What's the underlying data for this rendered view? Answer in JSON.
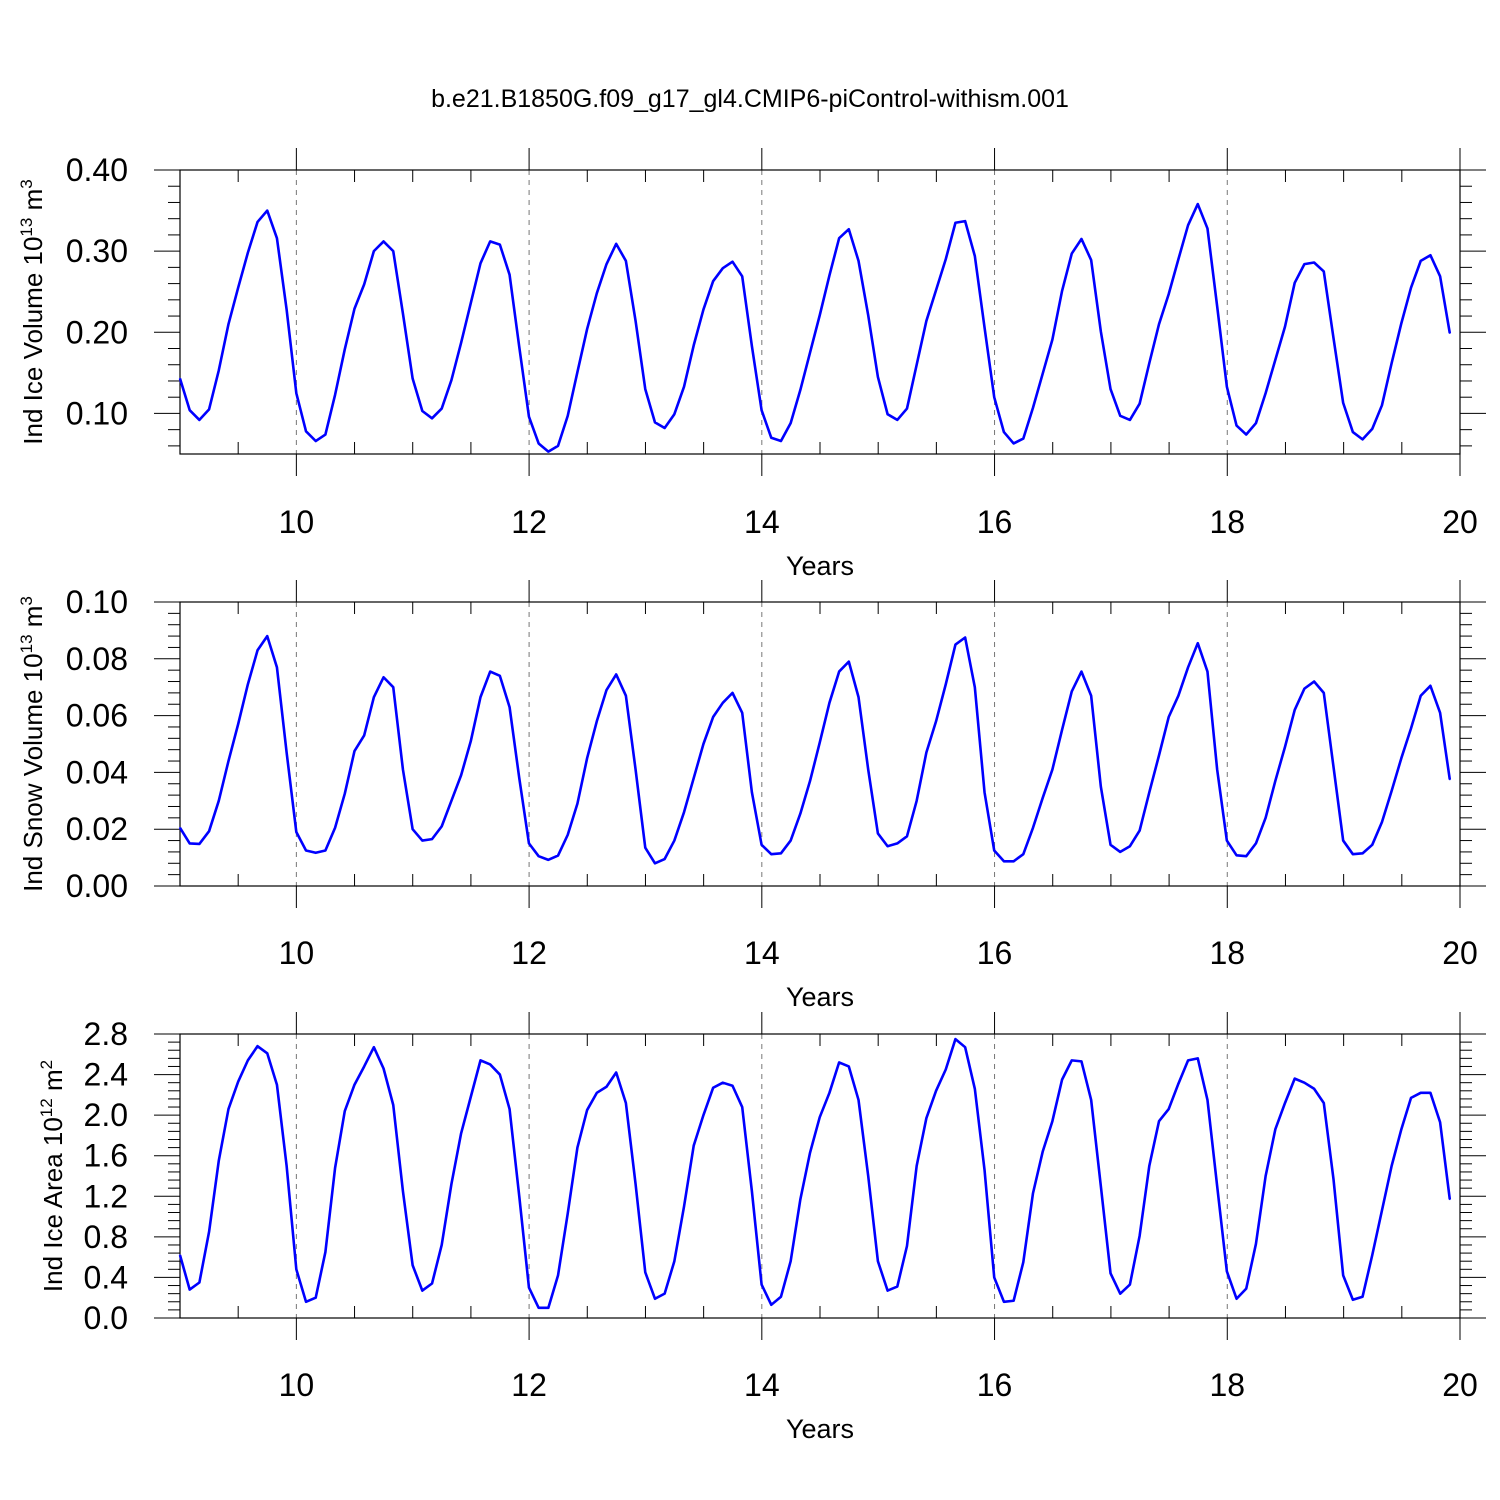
{
  "title": "b.e21.B1850G.f09_g17_gl4.CMIP6-piControl-withism.001",
  "line_color": "#0000ff",
  "chart_data": [
    {
      "type": "line",
      "ylabel": "Ind Ice Volume 10",
      "ylabel_exp": "13",
      "ylabel_unit": " m",
      "ylabel_unit_exp": "3",
      "xlabel": "Years",
      "xlim": [
        9.0,
        20.0
      ],
      "ylim": [
        0.05,
        0.4
      ],
      "xticks": [
        10,
        12,
        14,
        16,
        18,
        20
      ],
      "xtick_labels": [
        "10",
        "12",
        "14",
        "16",
        "18",
        "20"
      ],
      "yticks": [
        0.1,
        0.2,
        0.3,
        0.4
      ],
      "ytick_labels": [
        "0.10",
        "0.20",
        "0.30",
        "0.40"
      ],
      "series": [
        {
          "x_start": 9.0,
          "x_step": 0.0833,
          "values": [
            0.143,
            0.104,
            0.092,
            0.105,
            0.153,
            0.21,
            0.255,
            0.298,
            0.336,
            0.35,
            0.316,
            0.228,
            0.125,
            0.078,
            0.066,
            0.074,
            0.123,
            0.179,
            0.229,
            0.259,
            0.3,
            0.312,
            0.3,
            0.223,
            0.143,
            0.103,
            0.094,
            0.106,
            0.141,
            0.187,
            0.236,
            0.285,
            0.312,
            0.308,
            0.271,
            0.182,
            0.096,
            0.063,
            0.053,
            0.06,
            0.097,
            0.151,
            0.204,
            0.248,
            0.284,
            0.309,
            0.288,
            0.214,
            0.13,
            0.089,
            0.082,
            0.099,
            0.133,
            0.184,
            0.228,
            0.263,
            0.279,
            0.287,
            0.269,
            0.183,
            0.104,
            0.07,
            0.066,
            0.088,
            0.129,
            0.175,
            0.221,
            0.27,
            0.316,
            0.327,
            0.288,
            0.221,
            0.145,
            0.099,
            0.092,
            0.106,
            0.16,
            0.214,
            0.252,
            0.29,
            0.335,
            0.337,
            0.294,
            0.206,
            0.12,
            0.077,
            0.063,
            0.069,
            0.107,
            0.149,
            0.191,
            0.251,
            0.297,
            0.315,
            0.289,
            0.201,
            0.13,
            0.097,
            0.092,
            0.112,
            0.162,
            0.21,
            0.247,
            0.29,
            0.332,
            0.358,
            0.328,
            0.232,
            0.133,
            0.085,
            0.074,
            0.088,
            0.125,
            0.166,
            0.207,
            0.261,
            0.284,
            0.286,
            0.275,
            0.193,
            0.113,
            0.077,
            0.068,
            0.081,
            0.11,
            0.162,
            0.211,
            0.255,
            0.288,
            0.295,
            0.269,
            0.199
          ]
        }
      ]
    },
    {
      "type": "line",
      "ylabel": "Ind Snow Volume 10",
      "ylabel_exp": "13",
      "ylabel_unit": " m",
      "ylabel_unit_exp": "3",
      "xlabel": "Years",
      "xlim": [
        9.0,
        20.0
      ],
      "ylim": [
        0.0,
        0.1
      ],
      "xticks": [
        10,
        12,
        14,
        16,
        18,
        20
      ],
      "xtick_labels": [
        "10",
        "12",
        "14",
        "16",
        "18",
        "20"
      ],
      "yticks": [
        0.0,
        0.02,
        0.04,
        0.06,
        0.08,
        0.1
      ],
      "ytick_labels": [
        "0.00",
        "0.02",
        "0.04",
        "0.06",
        "0.08",
        "0.10"
      ],
      "series": [
        {
          "x_start": 9.0,
          "x_step": 0.0833,
          "values": [
            0.0205,
            0.015,
            0.0148,
            0.0193,
            0.03,
            0.044,
            0.057,
            0.071,
            0.083,
            0.088,
            0.077,
            0.047,
            0.019,
            0.0125,
            0.0117,
            0.0125,
            0.0205,
            0.0325,
            0.0475,
            0.053,
            0.0665,
            0.0735,
            0.07,
            0.041,
            0.02,
            0.016,
            0.0165,
            0.021,
            0.03,
            0.039,
            0.051,
            0.0665,
            0.0755,
            0.074,
            0.063,
            0.038,
            0.015,
            0.0105,
            0.0092,
            0.0107,
            0.018,
            0.029,
            0.045,
            0.058,
            0.069,
            0.0745,
            0.067,
            0.041,
            0.0135,
            0.008,
            0.0095,
            0.016,
            0.026,
            0.038,
            0.05,
            0.0595,
            0.0645,
            0.068,
            0.061,
            0.033,
            0.0145,
            0.0112,
            0.0115,
            0.016,
            0.0255,
            0.037,
            0.0505,
            0.0645,
            0.0755,
            0.079,
            0.0665,
            0.041,
            0.0185,
            0.014,
            0.015,
            0.0175,
            0.03,
            0.047,
            0.058,
            0.071,
            0.085,
            0.0875,
            0.07,
            0.033,
            0.0125,
            0.0087,
            0.0087,
            0.0112,
            0.0205,
            0.031,
            0.041,
            0.055,
            0.0685,
            0.0755,
            0.067,
            0.035,
            0.0145,
            0.012,
            0.014,
            0.0195,
            0.033,
            0.046,
            0.0595,
            0.067,
            0.077,
            0.0855,
            0.0755,
            0.041,
            0.016,
            0.0108,
            0.0105,
            0.015,
            0.024,
            0.037,
            0.049,
            0.062,
            0.0695,
            0.072,
            0.068,
            0.042,
            0.016,
            0.0112,
            0.0115,
            0.0145,
            0.0225,
            0.0335,
            0.045,
            0.0555,
            0.067,
            0.0705,
            0.061,
            0.0375
          ]
        }
      ]
    },
    {
      "type": "line",
      "ylabel": "Ind Ice Area 10",
      "ylabel_exp": "12",
      "ylabel_unit": " m",
      "ylabel_unit_exp": "2",
      "xlabel": "Years",
      "xlim": [
        9.0,
        20.0
      ],
      "ylim": [
        0.0,
        2.8
      ],
      "xticks": [
        10,
        12,
        14,
        16,
        18,
        20
      ],
      "xtick_labels": [
        "10",
        "12",
        "14",
        "16",
        "18",
        "20"
      ],
      "yticks": [
        0.0,
        0.4,
        0.8,
        1.2,
        1.6,
        2.0,
        2.4,
        2.8
      ],
      "ytick_labels": [
        "0.0",
        "0.4",
        "0.8",
        "1.2",
        "1.6",
        "2.0",
        "2.4",
        "2.8"
      ],
      "series": [
        {
          "x_start": 9.0,
          "x_step": 0.0833,
          "values": [
            0.62,
            0.28,
            0.35,
            0.85,
            1.55,
            2.06,
            2.33,
            2.54,
            2.68,
            2.61,
            2.3,
            1.5,
            0.48,
            0.16,
            0.2,
            0.65,
            1.48,
            2.04,
            2.3,
            2.48,
            2.67,
            2.46,
            2.1,
            1.25,
            0.52,
            0.27,
            0.34,
            0.72,
            1.32,
            1.82,
            2.18,
            2.54,
            2.5,
            2.4,
            2.06,
            1.2,
            0.3,
            0.1,
            0.1,
            0.42,
            1.03,
            1.68,
            2.05,
            2.22,
            2.28,
            2.42,
            2.12,
            1.32,
            0.45,
            0.19,
            0.24,
            0.56,
            1.1,
            1.7,
            2.0,
            2.27,
            2.32,
            2.29,
            2.08,
            1.25,
            0.33,
            0.13,
            0.21,
            0.56,
            1.17,
            1.63,
            1.98,
            2.22,
            2.52,
            2.48,
            2.15,
            1.4,
            0.56,
            0.27,
            0.31,
            0.71,
            1.5,
            1.97,
            2.24,
            2.45,
            2.75,
            2.67,
            2.26,
            1.46,
            0.4,
            0.16,
            0.17,
            0.55,
            1.23,
            1.64,
            1.94,
            2.35,
            2.54,
            2.53,
            2.15,
            1.3,
            0.44,
            0.24,
            0.33,
            0.81,
            1.5,
            1.94,
            2.06,
            2.31,
            2.54,
            2.56,
            2.15,
            1.3,
            0.46,
            0.19,
            0.29,
            0.73,
            1.4,
            1.86,
            2.12,
            2.36,
            2.32,
            2.26,
            2.12,
            1.37,
            0.42,
            0.18,
            0.21,
            0.62,
            1.06,
            1.5,
            1.86,
            2.17,
            2.22,
            2.22,
            1.93,
            1.17
          ]
        }
      ]
    }
  ]
}
